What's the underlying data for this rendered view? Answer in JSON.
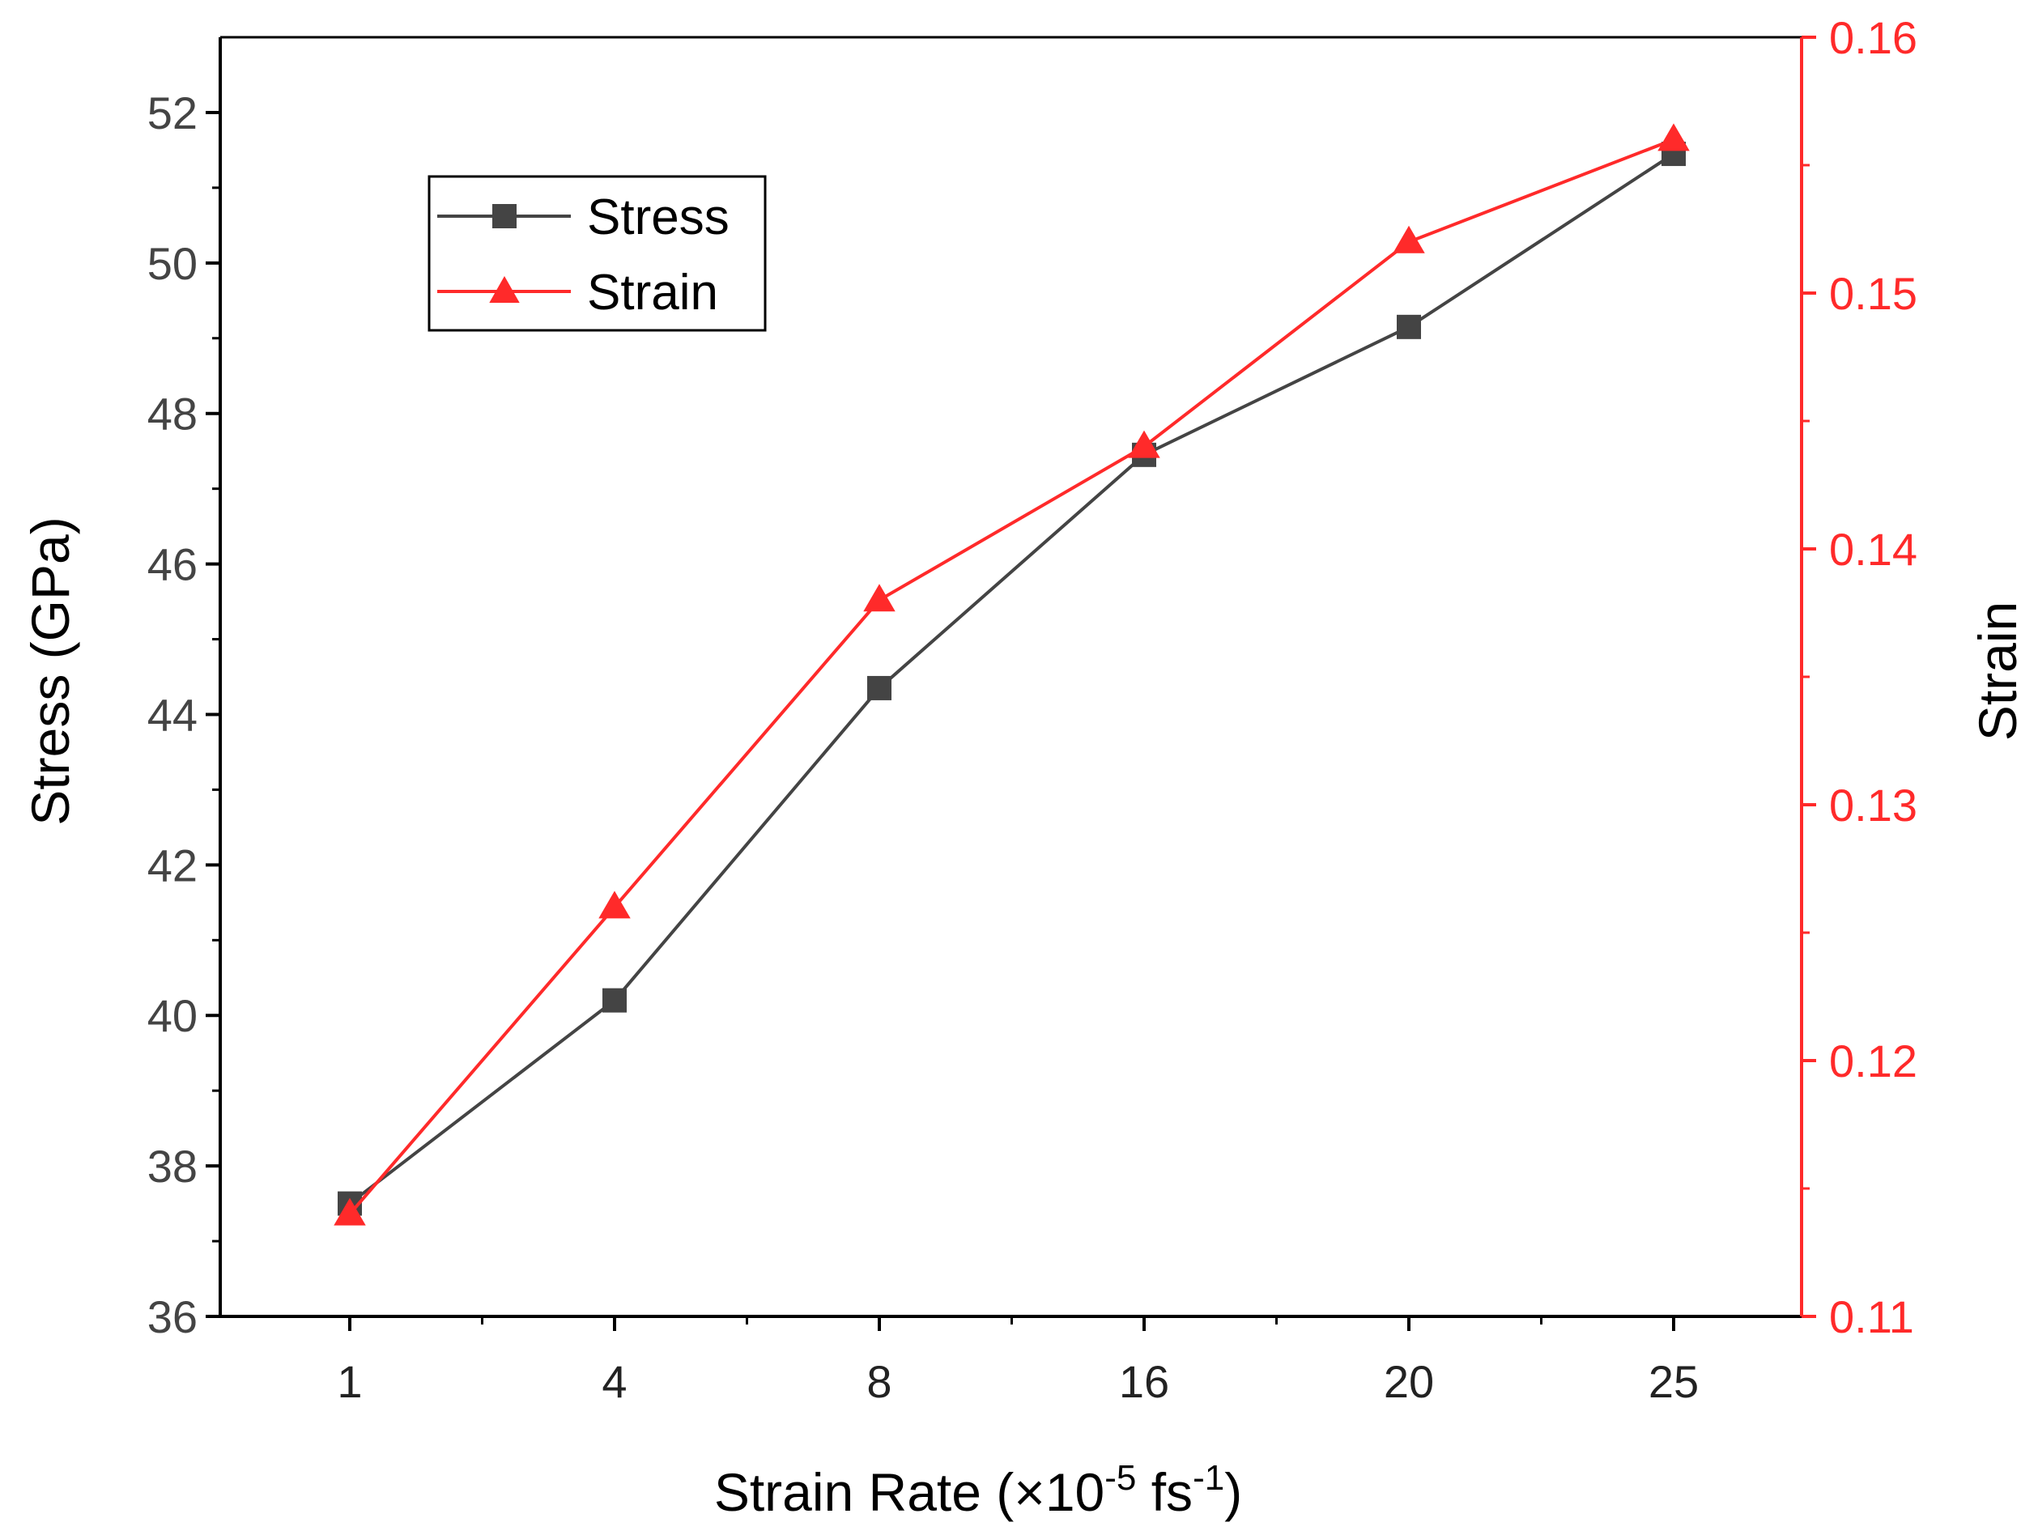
{
  "chart_data": {
    "type": "line",
    "title": "",
    "categories": [
      "1",
      "4",
      "8",
      "16",
      "20",
      "25"
    ],
    "xlabel": {
      "main": "Strain Rate (×10",
      "sup1": "-5",
      "mid": " fs",
      "sup2": "-1",
      "end": ")"
    },
    "y_left": {
      "label": "Stress (GPa)",
      "ylim": [
        36,
        53
      ],
      "ticks": [
        "36",
        "38",
        "40",
        "42",
        "44",
        "46",
        "48",
        "50",
        "52"
      ],
      "tick_values": [
        36,
        38,
        40,
        42,
        44,
        46,
        48,
        50,
        52
      ]
    },
    "y_right": {
      "label": "Strain",
      "ylim": [
        0.11,
        0.16
      ],
      "ticks": [
        "0.11",
        "0.12",
        "0.13",
        "0.14",
        "0.15",
        "0.16"
      ],
      "tick_values": [
        0.11,
        0.12,
        0.13,
        0.14,
        0.15,
        0.16
      ]
    },
    "series": [
      {
        "name": "Stress",
        "axis": "left",
        "marker": "square",
        "color": "#444444",
        "values": [
          37.5,
          40.2,
          44.35,
          47.45,
          49.15,
          51.45
        ]
      },
      {
        "name": "Strain",
        "axis": "right",
        "marker": "triangle",
        "color": "#ff2a2a",
        "values": [
          0.114,
          0.126,
          0.138,
          0.144,
          0.152,
          0.156
        ]
      }
    ],
    "legend": {
      "position": "top-left",
      "entries": [
        "Stress",
        "Strain"
      ]
    },
    "grid": false,
    "colors": {
      "left_axis": "#444444",
      "right_axis": "#ff2a2a",
      "frame": "#000000"
    }
  }
}
